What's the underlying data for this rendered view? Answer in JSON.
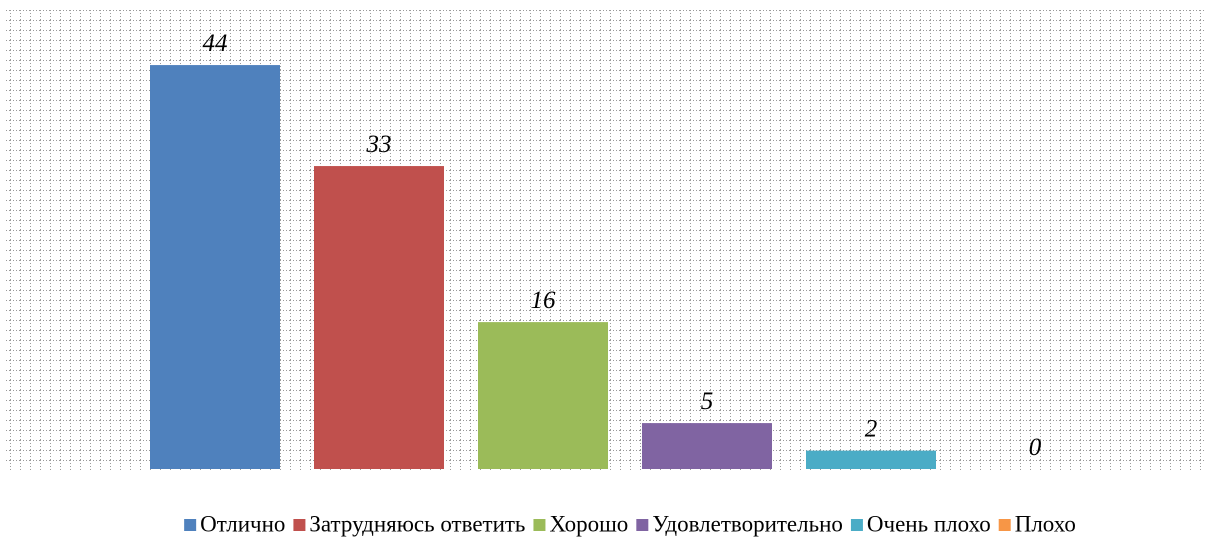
{
  "chart_data": {
    "type": "bar",
    "categories": [
      "Отлично",
      "Затрудняюсь ответить",
      "Хорошо",
      "Удовлетворительно",
      "Очень плохо",
      "Плохо"
    ],
    "values": [
      44,
      33,
      16,
      5,
      2,
      0
    ],
    "colors": [
      "#4f81bd",
      "#c0504d",
      "#9bbb59",
      "#8064a2",
      "#4bacc6",
      "#f79646"
    ],
    "ylim": [
      0,
      50
    ],
    "legend": "bottom"
  }
}
